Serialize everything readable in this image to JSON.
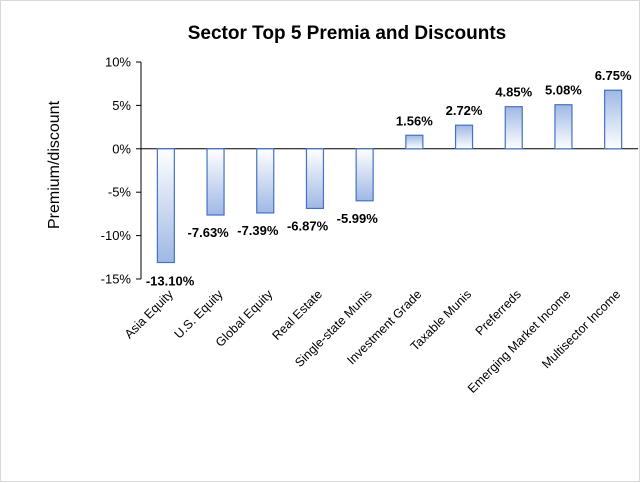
{
  "chart_data": {
    "type": "bar",
    "title": "Sector Top 5 Premia and Discounts",
    "xlabel": "",
    "ylabel": "Premium/discount",
    "ylim": [
      -15,
      10
    ],
    "yticks": [
      "10%",
      "5%",
      "0%",
      "-5%",
      "-10%",
      "-15%"
    ],
    "ytick_values": [
      10,
      5,
      0,
      -5,
      -10,
      -15
    ],
    "grid": false,
    "legend": "none",
    "categories": [
      "Asia Equity",
      "U.S. Equity",
      "Global Equity",
      "Real Estate",
      "Single-state Munis",
      "Investment Grade",
      "Taxable Munis",
      "Preferreds",
      "Emerging Market Income",
      "Multisector Income"
    ],
    "values": [
      -13.1,
      -7.63,
      -7.39,
      -6.87,
      -5.99,
      1.56,
      2.72,
      4.85,
      5.08,
      6.75
    ],
    "data_labels": [
      "-13.10%",
      "-7.63%",
      "-7.39%",
      "-6.87%",
      "-5.99%",
      "1.56%",
      "2.72%",
      "4.85%",
      "5.08%",
      "6.75%"
    ],
    "colors": {
      "bar_edge": "#4472c4",
      "bar_fill_dark": "#9fb8e4",
      "bar_fill_light": "#ffffff",
      "axis": "#000000"
    }
  }
}
